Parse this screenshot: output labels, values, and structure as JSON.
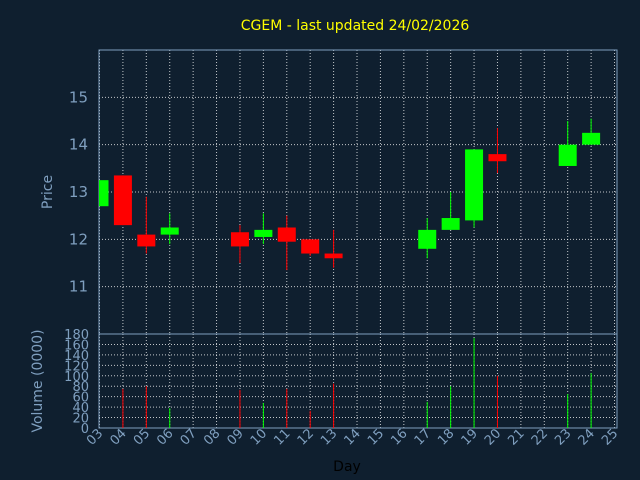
{
  "chart_data": {
    "type": "candlestick",
    "title": "CGEM - last updated 24/02/2026",
    "xlabel": "Day",
    "price_ylabel": "Price",
    "volume_ylabel": "Volume (0000)",
    "x_ticks": [
      "03",
      "04",
      "05",
      "06",
      "07",
      "08",
      "09",
      "10",
      "11",
      "12",
      "13",
      "14",
      "15",
      "16",
      "17",
      "18",
      "19",
      "20",
      "21",
      "22",
      "23",
      "24",
      "25"
    ],
    "price_ylim": [
      10,
      16
    ],
    "price_ticks": [
      11,
      12,
      13,
      14,
      15
    ],
    "volume_ylim": [
      0,
      180
    ],
    "volume_ticks": [
      0,
      20,
      40,
      60,
      80,
      100,
      120,
      140,
      160,
      180
    ],
    "grid": true,
    "up_color": "#00ff00",
    "down_color": "#ff0000",
    "background": "#0f1f2f",
    "series": [
      {
        "day": "03",
        "open": 12.7,
        "high": 13.25,
        "low": 12.7,
        "close": 13.25,
        "volume": 0
      },
      {
        "day": "04",
        "open": 13.35,
        "high": 13.35,
        "low": 12.3,
        "close": 12.3,
        "volume": 75
      },
      {
        "day": "05",
        "open": 12.1,
        "high": 12.9,
        "low": 11.7,
        "close": 11.85,
        "volume": 80
      },
      {
        "day": "06",
        "open": 12.1,
        "high": 12.55,
        "low": 11.9,
        "close": 12.25,
        "volume": 38
      },
      {
        "day": "09",
        "open": 12.15,
        "high": 12.3,
        "low": 11.5,
        "close": 11.85,
        "volume": 73
      },
      {
        "day": "10",
        "open": 12.05,
        "high": 12.55,
        "low": 11.9,
        "close": 12.2,
        "volume": 48
      },
      {
        "day": "11",
        "open": 12.25,
        "high": 12.5,
        "low": 11.35,
        "close": 11.95,
        "volume": 75
      },
      {
        "day": "12",
        "open": 12.0,
        "high": 12.0,
        "low": 11.65,
        "close": 11.7,
        "volume": 33
      },
      {
        "day": "13",
        "open": 11.7,
        "high": 12.2,
        "low": 11.4,
        "close": 11.6,
        "volume": 85
      },
      {
        "day": "17",
        "open": 11.8,
        "high": 12.45,
        "low": 11.6,
        "close": 12.2,
        "volume": 50
      },
      {
        "day": "18",
        "open": 12.2,
        "high": 13.0,
        "low": 12.2,
        "close": 12.45,
        "volume": 80
      },
      {
        "day": "19",
        "open": 12.4,
        "high": 13.9,
        "low": 12.25,
        "close": 13.9,
        "volume": 172
      },
      {
        "day": "20",
        "open": 13.8,
        "high": 14.35,
        "low": 13.4,
        "close": 13.65,
        "volume": 100
      },
      {
        "day": "23",
        "open": 13.55,
        "high": 14.5,
        "low": 13.55,
        "close": 14.0,
        "volume": 65
      },
      {
        "day": "24",
        "open": 14.0,
        "high": 14.55,
        "low": 14.0,
        "close": 14.25,
        "volume": 105
      }
    ]
  }
}
